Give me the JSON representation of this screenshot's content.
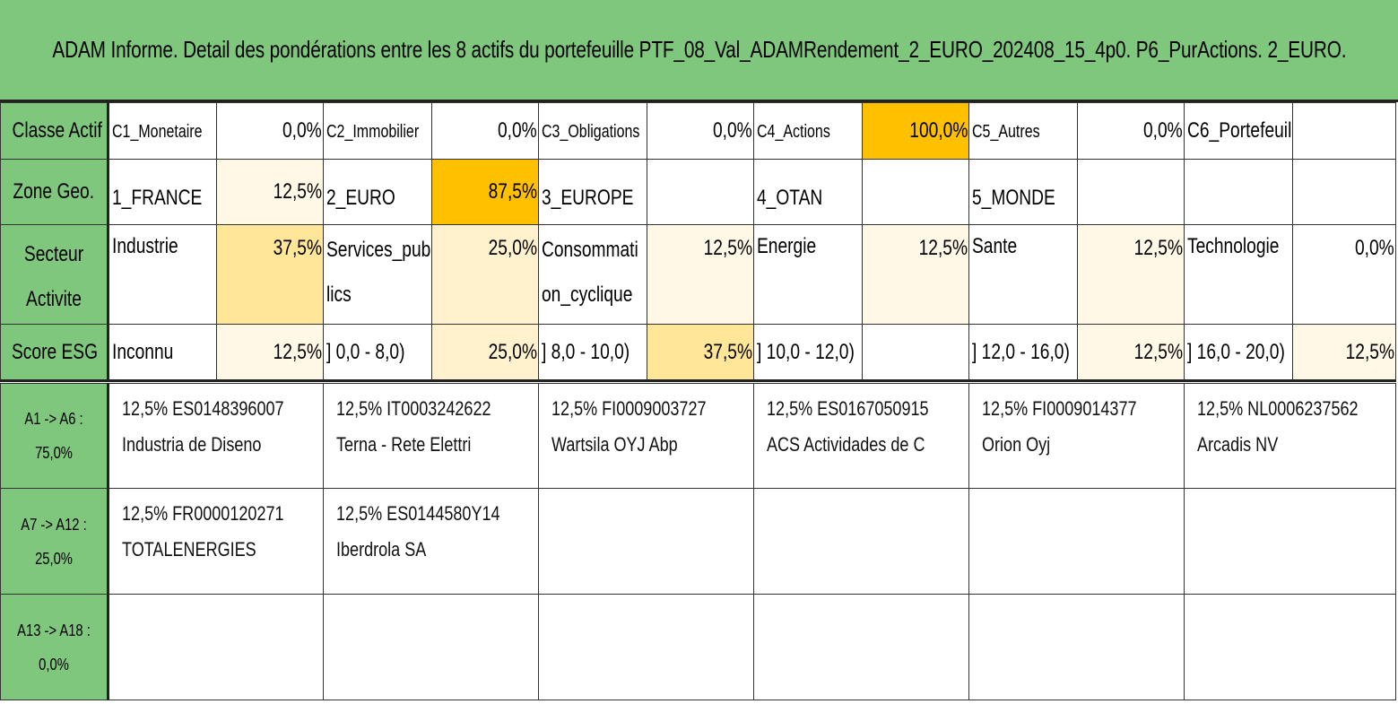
{
  "title": "ADAM Informe. Detail des pondérations entre les 8 actifs du portefeuille PTF_08_Val_ADAMRendement_2_EURO_202408_15_4p0. P6_PurActions. 2_EURO.",
  "colors": {
    "header_green": "#80c77e",
    "weight_high": "#ffc000",
    "weight_mid": "#ffe699",
    "weight_low": "#fff2cc",
    "weight_faint": "#fff8e6"
  },
  "attributes": [
    {
      "header": "Classe Actif",
      "cells": [
        {
          "label": "C1_Monetaire",
          "value": "0,0%"
        },
        {
          "label": "C2_Immobilier",
          "value": "0,0%"
        },
        {
          "label": "C3_Obligations",
          "value": "0,0%"
        },
        {
          "label": "C4_Actions",
          "value": "100,0%"
        },
        {
          "label": "C5_Autres",
          "value": "0,0%"
        },
        {
          "label": "C6_Portefeuill",
          "value": ""
        }
      ]
    },
    {
      "header": "Zone Geo.",
      "cells": [
        {
          "label": "1_FRANCE",
          "value": "12,5%"
        },
        {
          "label": "2_EURO",
          "value": "87,5%"
        },
        {
          "label": "3_EUROPE",
          "value": ""
        },
        {
          "label": "4_OTAN",
          "value": ""
        },
        {
          "label": "5_MONDE",
          "value": ""
        },
        {
          "label": "",
          "value": ""
        }
      ]
    },
    {
      "header_line1": "Secteur",
      "header_line2": "Activite",
      "cells": [
        {
          "label": "Industrie",
          "value": "37,5%"
        },
        {
          "label": "Services_pub",
          "label2": "lics",
          "value": "25,0%"
        },
        {
          "label": "Consommati",
          "label2": "on_cyclique",
          "value": "12,5%"
        },
        {
          "label": "Energie",
          "value": "12,5%"
        },
        {
          "label": "Sante",
          "value": "12,5%"
        },
        {
          "label": "Technologie",
          "value": "0,0%"
        }
      ]
    },
    {
      "header": "Score ESG",
      "cells": [
        {
          "label": "Inconnu",
          "value": "12,5%"
        },
        {
          "label": "] 0,0 - 8,0)",
          "value": "25,0%"
        },
        {
          "label": "] 8,0 - 10,0)",
          "value": "37,5%"
        },
        {
          "label": "] 10,0 - 12,0)",
          "value": ""
        },
        {
          "label": "] 12,0 - 16,0)",
          "value": "12,5%"
        },
        {
          "label": "] 16,0 - 20,0)",
          "value": "12,5%"
        }
      ]
    }
  ],
  "asset_rows": [
    {
      "header_line1": "A1 -> A6 :",
      "header_line2": "75,0%",
      "assets": [
        {
          "line1": "12,5% ES0148396007",
          "line2": "Industria de Diseno"
        },
        {
          "line1": "12,5% IT0003242622",
          "line2": "Terna - Rete Elettri"
        },
        {
          "line1": "12,5% FI0009003727",
          "line2": "Wartsila OYJ Abp"
        },
        {
          "line1": "12,5% ES0167050915",
          "line2": "ACS Actividades de C"
        },
        {
          "line1": "12,5% FI0009014377",
          "line2": "Orion Oyj"
        },
        {
          "line1": "12,5% NL0006237562",
          "line2": "Arcadis NV"
        }
      ]
    },
    {
      "header_line1": "A7 -> A12 :",
      "header_line2": "25,0%",
      "assets": [
        {
          "line1": "12,5% FR0000120271",
          "line2": "TOTALENERGIES"
        },
        {
          "line1": "12,5% ES0144580Y14",
          "line2": "Iberdrola SA"
        },
        {
          "line1": "",
          "line2": ""
        },
        {
          "line1": "",
          "line2": ""
        },
        {
          "line1": "",
          "line2": ""
        },
        {
          "line1": "",
          "line2": ""
        }
      ]
    },
    {
      "header_line1": "A13 -> A18 :",
      "header_line2": "0,0%",
      "assets": [
        {
          "line1": "",
          "line2": ""
        },
        {
          "line1": "",
          "line2": ""
        },
        {
          "line1": "",
          "line2": ""
        },
        {
          "line1": "",
          "line2": ""
        },
        {
          "line1": "",
          "line2": ""
        },
        {
          "line1": "",
          "line2": ""
        }
      ]
    }
  ]
}
